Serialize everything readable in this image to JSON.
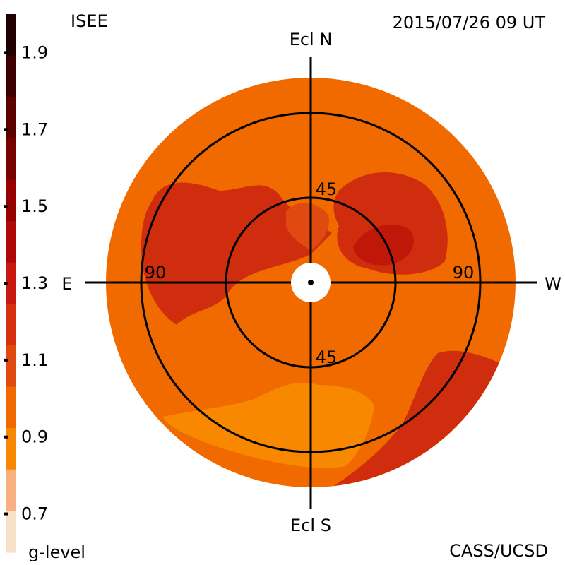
{
  "header": {
    "left_label": "ISEE",
    "timestamp": "2015/07/26 09 UT"
  },
  "footer": {
    "left_label": "g-level",
    "right_label": "CASS/UCSD"
  },
  "chart_data": {
    "type": "heatmap",
    "colorbar": {
      "label": "g-level",
      "min": 0.6,
      "max": 2.0,
      "tick_labels": [
        "1.9",
        "1.7",
        "1.5",
        "1.3",
        "1.1",
        "0.9",
        "0.7"
      ],
      "tick_values": [
        1.9,
        1.7,
        1.5,
        1.3,
        1.1,
        0.9,
        0.7
      ],
      "band_colors": [
        "#1e0000",
        "#3c0000",
        "#5c0000",
        "#780000",
        "#960000",
        "#b00808",
        "#c81810",
        "#d63010",
        "#e04a10",
        "#f06a00",
        "#f88800",
        "#f8b080",
        "#f8e0c8"
      ]
    },
    "axes": {
      "top": "Ecl N",
      "bottom": "Ecl S",
      "left": "E",
      "right": "W",
      "circle_labels": [
        "45",
        "45",
        "90",
        "90"
      ],
      "elongation_circles": [
        45,
        90
      ]
    },
    "dominant_level": 0.95,
    "regions": [
      {
        "name": "bright-peak-northwest",
        "level": 1.25,
        "color": "#c01808"
      },
      {
        "name": "bright-north",
        "level": 1.15,
        "color": "#d02c0e"
      },
      {
        "name": "enhanced-band-east",
        "level": 1.05,
        "color": "#e04a10"
      },
      {
        "name": "enhanced-band-southwest",
        "level": 1.05,
        "color": "#e04a10"
      },
      {
        "name": "faint-south",
        "level": 0.85,
        "color": "#f88800"
      }
    ],
    "background_color": "#f06a00"
  }
}
